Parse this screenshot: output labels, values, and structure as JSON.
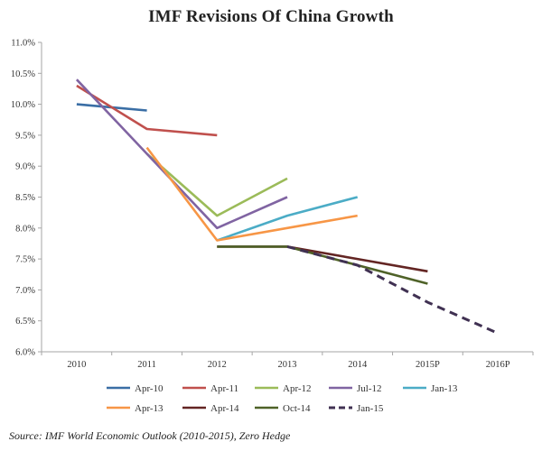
{
  "chart_data": {
    "type": "line",
    "title": "IMF Revisions Of China Growth",
    "xlabel": "",
    "ylabel": "",
    "categories": [
      "2010",
      "2011",
      "2012",
      "2013",
      "2014",
      "2015P",
      "2016P"
    ],
    "y_tick_labels": [
      "6.0%",
      "6.5%",
      "7.0%",
      "7.5%",
      "8.0%",
      "8.5%",
      "9.0%",
      "9.5%",
      "10.0%",
      "10.5%",
      "11.0%"
    ],
    "ylim": [
      6.0,
      11.0
    ],
    "grid": false,
    "legend_position": "bottom",
    "series": [
      {
        "name": "Apr-10",
        "color": "#3a6ea5",
        "dashed": false,
        "values": [
          10.0,
          9.9,
          null,
          null,
          null,
          null,
          null
        ]
      },
      {
        "name": "Apr-11",
        "color": "#c0504d",
        "dashed": false,
        "values": [
          10.3,
          9.6,
          9.5,
          null,
          null,
          null,
          null
        ]
      },
      {
        "name": "Apr-12",
        "color": "#9bbb59",
        "dashed": false,
        "values": [
          null,
          9.2,
          8.2,
          8.8,
          null,
          null,
          null
        ]
      },
      {
        "name": "Jul-12",
        "color": "#8064a2",
        "dashed": false,
        "values": [
          10.4,
          9.2,
          8.0,
          8.5,
          null,
          null,
          null
        ]
      },
      {
        "name": "Jan-13",
        "color": "#4bacc6",
        "dashed": false,
        "values": [
          null,
          null,
          7.8,
          8.2,
          8.5,
          null,
          null
        ]
      },
      {
        "name": "Apr-13",
        "color": "#f79646",
        "dashed": false,
        "values": [
          null,
          9.3,
          7.8,
          8.0,
          8.2,
          null,
          null
        ]
      },
      {
        "name": "Apr-14",
        "color": "#632523",
        "dashed": false,
        "values": [
          null,
          null,
          7.7,
          7.7,
          7.5,
          7.3,
          null
        ]
      },
      {
        "name": "Oct-14",
        "color": "#4f6228",
        "dashed": false,
        "values": [
          null,
          null,
          7.7,
          7.7,
          7.4,
          7.1,
          null
        ]
      },
      {
        "name": "Jan-15",
        "color": "#403152",
        "dashed": true,
        "values": [
          null,
          null,
          null,
          7.7,
          7.4,
          6.8,
          6.3
        ]
      }
    ]
  },
  "source": "Source: IMF World Economic Outlook (2010-2015), Zero Hedge"
}
